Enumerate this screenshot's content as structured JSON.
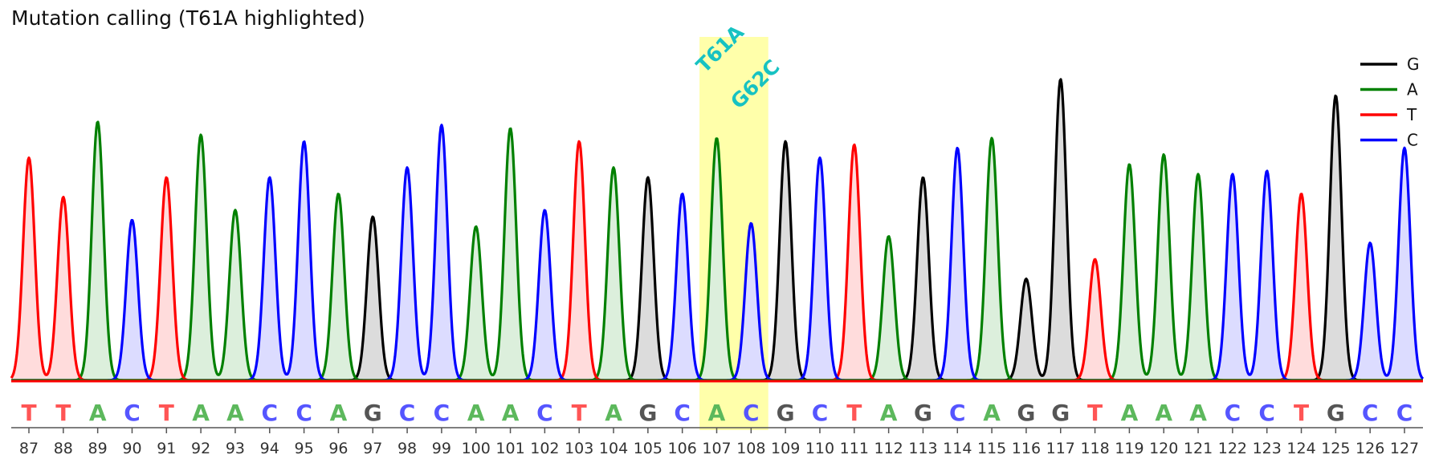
{
  "chart_data": {
    "type": "line",
    "title": "Mutation calling (T61A highlighted)",
    "xlabel": "",
    "ylabel": "",
    "x_positions": [
      87,
      88,
      89,
      90,
      91,
      92,
      93,
      94,
      95,
      96,
      97,
      98,
      99,
      100,
      101,
      102,
      103,
      104,
      105,
      106,
      107,
      108,
      109,
      110,
      111,
      112,
      113,
      114,
      115,
      116,
      117,
      118,
      119,
      120,
      121,
      122,
      123,
      124,
      125,
      126,
      127
    ],
    "bases": [
      "T",
      "T",
      "A",
      "C",
      "T",
      "A",
      "A",
      "C",
      "C",
      "A",
      "G",
      "C",
      "C",
      "A",
      "A",
      "C",
      "T",
      "A",
      "G",
      "C",
      "A",
      "C",
      "G",
      "C",
      "T",
      "A",
      "G",
      "C",
      "A",
      "G",
      "G",
      "T",
      "A",
      "A",
      "A",
      "C",
      "C",
      "T",
      "G",
      "C",
      "C"
    ],
    "peak_heights": [
      0.68,
      0.56,
      0.79,
      0.49,
      0.62,
      0.75,
      0.52,
      0.62,
      0.73,
      0.57,
      0.5,
      0.65,
      0.78,
      0.47,
      0.77,
      0.52,
      0.73,
      0.65,
      0.62,
      0.57,
      0.74,
      0.48,
      0.73,
      0.68,
      0.72,
      0.44,
      0.62,
      0.71,
      0.74,
      0.31,
      0.92,
      0.37,
      0.66,
      0.69,
      0.63,
      0.63,
      0.64,
      0.57,
      0.87,
      0.42,
      0.71
    ],
    "series": [
      {
        "name": "G",
        "color": "#000000",
        "fill": "#dcdcdc"
      },
      {
        "name": "A",
        "color": "#008000",
        "fill": "#dcefdc"
      },
      {
        "name": "T",
        "color": "#ff0000",
        "fill": "#ffdcdc"
      },
      {
        "name": "C",
        "color": "#0000ff",
        "fill": "#dcdcff"
      }
    ],
    "letter_colors": {
      "G": "#555555",
      "A": "#5cb85c",
      "T": "#ff5555",
      "C": "#5555ff"
    },
    "highlight": {
      "from": 107,
      "to": 108,
      "color": "#ffffaa"
    },
    "annotations": [
      {
        "text": "T61A",
        "at": 107,
        "level": 0.98
      },
      {
        "text": "G62C",
        "at": 108,
        "level": 0.87
      }
    ],
    "legend_position": "top-right",
    "grid": false
  }
}
